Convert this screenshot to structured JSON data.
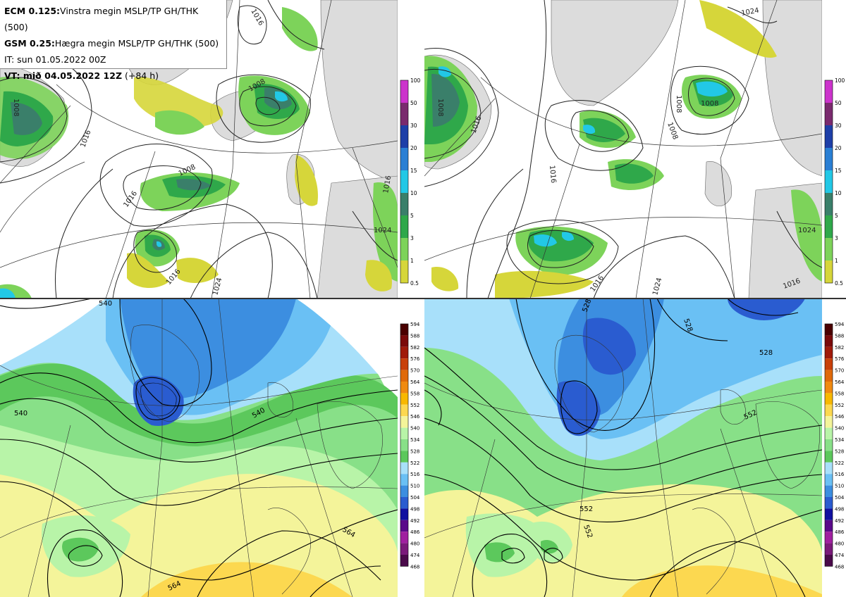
{
  "header": {
    "line1_model": "ECM 0.125:",
    "line1_text": "Vinstra megin MSLP/TP GH/THK (500)",
    "line2_model": "GSM 0.25:",
    "line2_text": "Hægra megin MSLP/TP GH/THK (500)",
    "line3": "IT: sun 01.05.2022 00Z",
    "line4_bold": "VT: mið 04.05.2022 12Z",
    "line4_rest": "(+84 h)"
  },
  "precip_colorbar": {
    "labels": [
      "100",
      "50",
      "30",
      "20",
      "15",
      "10",
      "5",
      "3",
      "1",
      "0.5"
    ],
    "colors": [
      "#cc33cc",
      "#7a2a6e",
      "#1e3fa8",
      "#2a7fd4",
      "#22c8e6",
      "#3a7f6a",
      "#2fa84a",
      "#7dd35a",
      "#d6d63a"
    ]
  },
  "thickness_colorbar": {
    "labels": [
      "594",
      "588",
      "582",
      "576",
      "570",
      "564",
      "558",
      "552",
      "546",
      "540",
      "534",
      "528",
      "522",
      "516",
      "510",
      "504",
      "498",
      "492",
      "486",
      "480",
      "474",
      "468"
    ],
    "colors": [
      "#4a0000",
      "#7a0a0a",
      "#a01a0a",
      "#c8400a",
      "#e06a0a",
      "#f08a10",
      "#f8b800",
      "#fcd850",
      "#f4f49a",
      "#b8f4a8",
      "#88e088",
      "#5cc85c",
      "#a8e0fa",
      "#6ac0f4",
      "#3c8ee0",
      "#2a5cd0",
      "#1010a0",
      "#5a0a8a",
      "#a020a0",
      "#7a1a7a",
      "#4a0a4a"
    ]
  },
  "contour_labels": {
    "tl": [
      "1016",
      "1008",
      "1016",
      "1008",
      "1016",
      "1016",
      "1024",
      "1016",
      "1016",
      "1024",
      "1008"
    ],
    "tr": [
      "1008",
      "1008",
      "1008",
      "1008",
      "1016",
      "1016",
      "1024",
      "1016",
      "1016",
      "1024",
      "1024"
    ],
    "bl": [
      "540",
      "540",
      "540",
      "564",
      "564"
    ],
    "br": [
      "528",
      "528",
      "528",
      "552",
      "552",
      "552"
    ]
  }
}
